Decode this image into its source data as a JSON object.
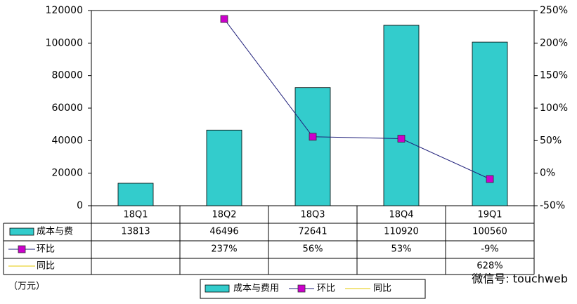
{
  "chart_data": {
    "type": "bar_line",
    "categories": [
      "18Q1",
      "18Q2",
      "18Q3",
      "18Q4",
      "19Q1"
    ],
    "series": [
      {
        "name": "成本与费用",
        "table_label": "成本与费",
        "type": "bar",
        "color": "#33cccc",
        "values": [
          13813,
          46496,
          72641,
          110920,
          100560
        ]
      },
      {
        "name": "环比",
        "table_label": "环比",
        "type": "line",
        "axis": "y2",
        "color": "#1f1f7a",
        "marker_color": "#cc00cc",
        "values": [
          null,
          237,
          56,
          53,
          -9
        ],
        "value_labels": [
          null,
          "237%",
          "56%",
          "53%",
          "-9%"
        ]
      },
      {
        "name": "同比",
        "table_label": "同比",
        "type": "line",
        "axis": "y2",
        "color": "#e6c800",
        "values": [
          null,
          null,
          null,
          null,
          628
        ],
        "value_labels": [
          null,
          null,
          null,
          null,
          "628%"
        ]
      }
    ],
    "ylim": [
      0,
      120000
    ],
    "yticks": [
      0,
      20000,
      40000,
      60000,
      80000,
      100000,
      120000
    ],
    "y2lim": [
      -50,
      250
    ],
    "y2ticks": [
      {
        "value": -50,
        "label": "-50%"
      },
      {
        "value": 0,
        "label": "0%"
      },
      {
        "value": 50,
        "label": "50%"
      },
      {
        "value": 100,
        "label": "100%"
      },
      {
        "value": 150,
        "label": "150%"
      },
      {
        "value": 200,
        "label": "200%"
      },
      {
        "value": 250,
        "label": "250%"
      }
    ],
    "unit": "（万元）",
    "watermark": "微信号: touchweb"
  }
}
